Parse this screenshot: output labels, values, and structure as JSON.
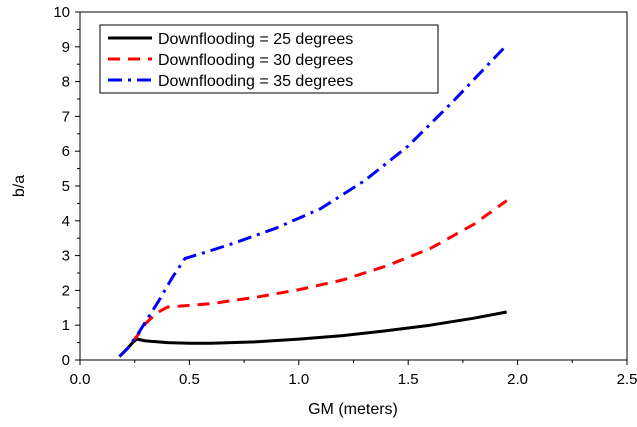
{
  "chart_data": {
    "type": "line",
    "title": "",
    "xlabel": "GM (meters)",
    "ylabel": "b/a",
    "xlim": [
      0.0,
      2.5
    ],
    "ylim": [
      0,
      10
    ],
    "x_ticks": [
      "0.0",
      "0.5",
      "1.0",
      "1.5",
      "2.0",
      "2.5"
    ],
    "y_ticks": [
      "0",
      "1",
      "2",
      "3",
      "4",
      "5",
      "6",
      "7",
      "8",
      "9",
      "10"
    ],
    "grid": false,
    "legend_position": "top-left",
    "series": [
      {
        "name": "Downflooding = 25 degrees",
        "color": "#000000",
        "style": "solid",
        "x": [
          0.18,
          0.21,
          0.24,
          0.26,
          0.3,
          0.4,
          0.5,
          0.6,
          0.8,
          1.0,
          1.2,
          1.4,
          1.6,
          1.8,
          1.95
        ],
        "y": [
          0.1,
          0.28,
          0.5,
          0.6,
          0.55,
          0.5,
          0.48,
          0.48,
          0.52,
          0.6,
          0.7,
          0.84,
          1.0,
          1.2,
          1.38
        ]
      },
      {
        "name": "Downflooding = 30 degrees",
        "color": "#ff0000",
        "style": "dash",
        "x": [
          0.18,
          0.22,
          0.26,
          0.3,
          0.35,
          0.4,
          0.5,
          0.6,
          0.8,
          1.0,
          1.2,
          1.4,
          1.6,
          1.8,
          1.95
        ],
        "y": [
          0.1,
          0.35,
          0.68,
          1.05,
          1.35,
          1.52,
          1.57,
          1.62,
          1.8,
          2.02,
          2.3,
          2.7,
          3.2,
          3.9,
          4.58
        ]
      },
      {
        "name": "Downflooding = 35 degrees",
        "color": "#0000ff",
        "style": "dashdot",
        "x": [
          0.18,
          0.22,
          0.26,
          0.3,
          0.36,
          0.42,
          0.48,
          0.55,
          0.7,
          0.9,
          1.1,
          1.3,
          1.5,
          1.7,
          1.95
        ],
        "y": [
          0.1,
          0.35,
          0.7,
          1.1,
          1.7,
          2.35,
          2.92,
          3.05,
          3.35,
          3.8,
          4.35,
          5.15,
          6.15,
          7.4,
          9.05
        ]
      }
    ]
  }
}
